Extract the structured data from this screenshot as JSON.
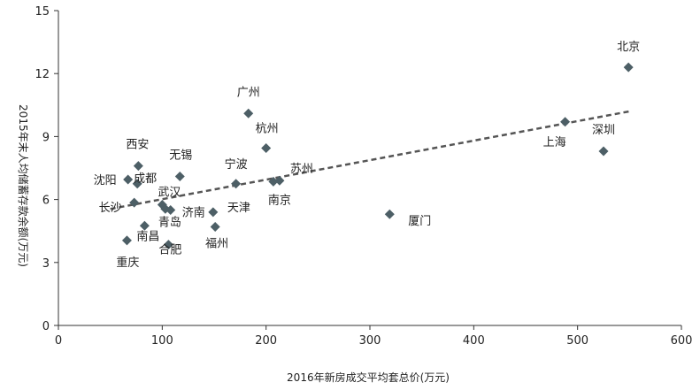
{
  "chart_data": {
    "type": "scatter",
    "xlabel": "2016年新房成交平均套总价(万元)",
    "ylabel": "2015年末人均储蓄存款余额(万元)",
    "xlim": [
      0,
      600
    ],
    "ylim": [
      0,
      15
    ],
    "xticks": [
      0,
      100,
      200,
      300,
      400,
      500,
      600
    ],
    "yticks": [
      0,
      3,
      6,
      9,
      12,
      15
    ],
    "grid": false,
    "marker": "diamond",
    "color": "#4d5f66",
    "trendline": {
      "style": "dashed",
      "color": "#555555",
      "x": [
        50,
        550
      ],
      "y": [
        5.55,
        10.2
      ]
    },
    "points": [
      {
        "label": "北京",
        "x": 549,
        "y": 12.3
      },
      {
        "label": "上海",
        "x": 488,
        "y": 9.7
      },
      {
        "label": "深圳",
        "x": 525,
        "y": 8.3
      },
      {
        "label": "广州",
        "x": 183,
        "y": 10.1
      },
      {
        "label": "杭州",
        "x": 200,
        "y": 8.45
      },
      {
        "label": "苏州",
        "x": 213,
        "y": 6.9
      },
      {
        "label": "南京",
        "x": 207,
        "y": 6.85
      },
      {
        "label": "宁波",
        "x": 171,
        "y": 6.75
      },
      {
        "label": "天津",
        "x": 149,
        "y": 5.4
      },
      {
        "label": "福州",
        "x": 151,
        "y": 4.7
      },
      {
        "label": "厦门",
        "x": 319,
        "y": 5.3
      },
      {
        "label": "无锡",
        "x": 117,
        "y": 7.1
      },
      {
        "label": "西安",
        "x": 77,
        "y": 7.6
      },
      {
        "label": "成都",
        "x": 76,
        "y": 6.75
      },
      {
        "label": "沈阳",
        "x": 67,
        "y": 6.95
      },
      {
        "label": "武汉",
        "x": 100,
        "y": 5.75
      },
      {
        "label": "长沙",
        "x": 73,
        "y": 5.85
      },
      {
        "label": "济南",
        "x": 108,
        "y": 5.5
      },
      {
        "label": "青岛",
        "x": 103,
        "y": 5.55
      },
      {
        "label": "南昌",
        "x": 83,
        "y": 4.75
      },
      {
        "label": "重庆",
        "x": 66,
        "y": 4.05
      },
      {
        "label": "合肥",
        "x": 106,
        "y": 3.85
      }
    ]
  }
}
